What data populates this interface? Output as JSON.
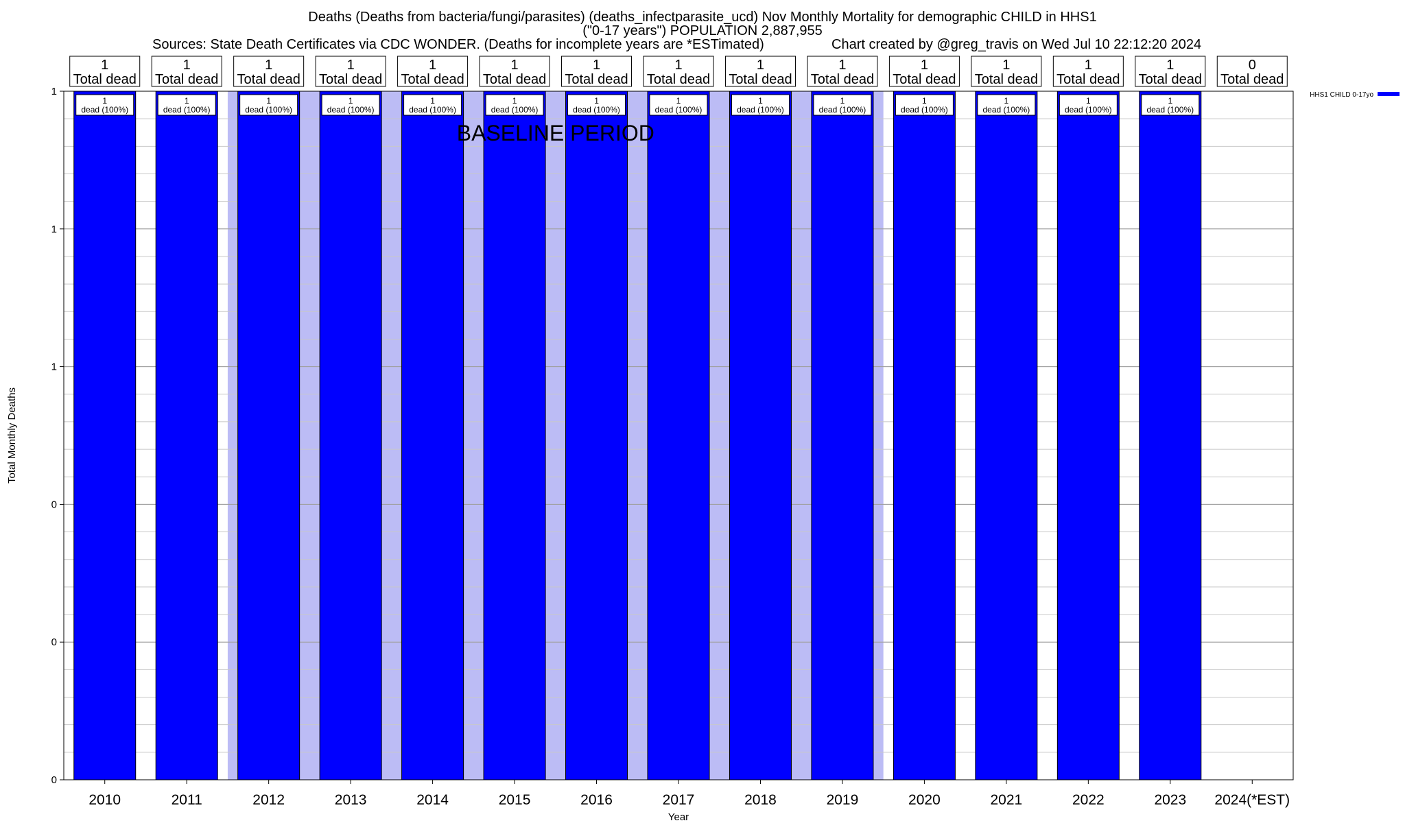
{
  "chart_data": {
    "type": "bar",
    "title": "Deaths (Deaths from bacteria/fungi/parasites) (deaths_infectparasite_ucd) Nov Monthly Mortality for demographic CHILD in HHS1",
    "subtitle": "(\"0-17 years\") POPULATION 2,887,955",
    "sources": "Sources: State Death Certificates via CDC WONDER. (Deaths for incomplete years are *ESTimated)",
    "credit": "Chart created by @greg_travis on Wed Jul 10 22:12:20 2024",
    "xlabel": "Year",
    "ylabel": "Total Monthly Deaths",
    "categories": [
      "2010",
      "2011",
      "2012",
      "2013",
      "2014",
      "2015",
      "2016",
      "2017",
      "2018",
      "2019",
      "2020",
      "2021",
      "2022",
      "2023",
      "2024(*EST)"
    ],
    "series": [
      {
        "name": "HHS1 CHILD 0-17yo",
        "color": "#0000ff",
        "values": [
          1,
          1,
          1,
          1,
          1,
          1,
          1,
          1,
          1,
          1,
          1,
          1,
          1,
          1,
          0
        ]
      }
    ],
    "total_labels": [
      "1",
      "1",
      "1",
      "1",
      "1",
      "1",
      "1",
      "1",
      "1",
      "1",
      "1",
      "1",
      "1",
      "1",
      "0"
    ],
    "total_caption": "Total dead",
    "bar_labels": [
      "1\ndead (100%)",
      "1\ndead (100%)",
      "1\ndead (100%)",
      "1\ndead (100%)",
      "1\ndead (100%)",
      "1\ndead (100%)",
      "1\ndead (100%)",
      "1\ndead (100%)",
      "1\ndead (100%)",
      "1\ndead (100%)",
      "1\ndead (100%)",
      "1\ndead (100%)",
      "1\ndead (100%)",
      "1\ndead (100%)",
      ""
    ],
    "baseline_period": {
      "label": "BASELINE PERIOD",
      "from": "2012",
      "to": "2019",
      "color": "#bcbcf5"
    },
    "ylim": [
      0,
      1
    ],
    "y_tick_labels": [
      "0",
      "0",
      "0",
      "1",
      "1",
      "1"
    ],
    "grid": true,
    "legend_position": "top-right"
  }
}
